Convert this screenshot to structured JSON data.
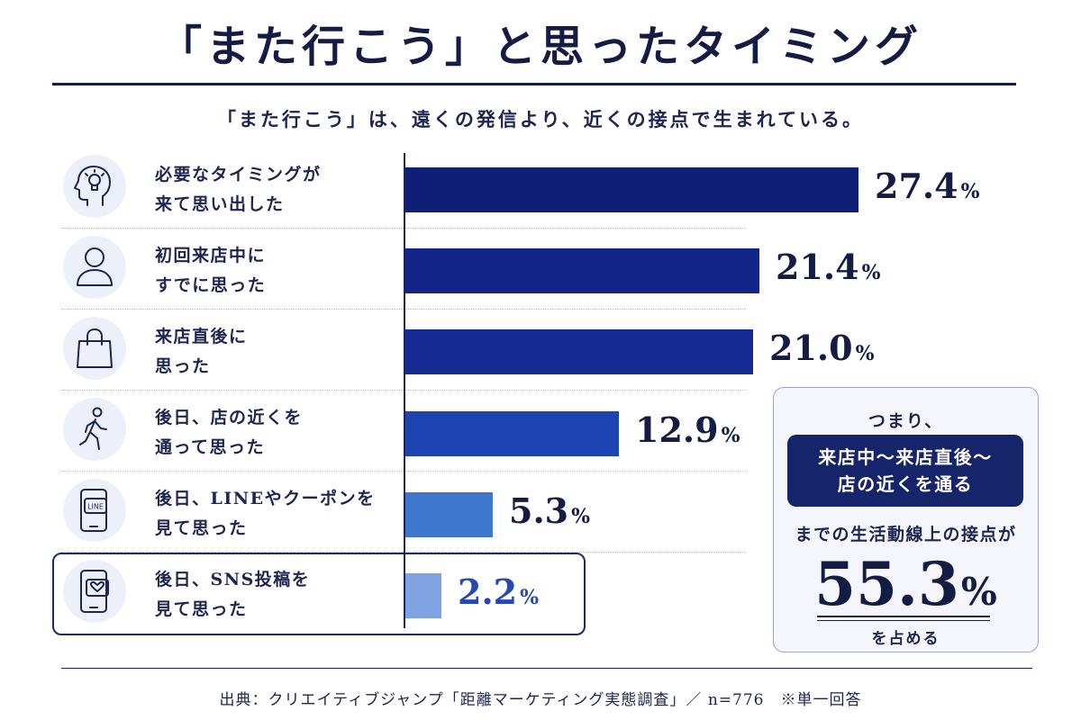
{
  "header": {
    "title": "「また行こう」と思ったタイミング",
    "subtitle": "「また行こう」は、遠くの発信より、近くの接点で生まれている。"
  },
  "colors": {
    "navy": "#141c44",
    "bar_colors": [
      "#0f1f78",
      "#14258a",
      "#162a94",
      "#1d45b2",
      "#3f77cc",
      "#7ea3e0"
    ],
    "highlight_value": "#2747b4"
  },
  "chart_data": {
    "type": "bar",
    "orientation": "horizontal",
    "categories": [
      "必要なタイミングが来て思い出した",
      "初回来店中にすでに思った",
      "来店直後に思った",
      "後日、店の近くを通って思った",
      "後日、LINEやクーポンを見て思った",
      "後日、SNS投稿を見て思った"
    ],
    "category_lines": [
      [
        "必要なタイミングが",
        "来て思い出した"
      ],
      [
        "初回来店中に",
        "すでに思った"
      ],
      [
        "来店直後に",
        "思った"
      ],
      [
        "後日、店の近くを",
        "通って思った"
      ],
      [
        "後日、LINEやクーポンを",
        "見て思った"
      ],
      [
        "後日、SNS投稿を",
        "見て思った"
      ]
    ],
    "icons": [
      "head-lightbulb-icon",
      "person-icon",
      "shopping-bag-icon",
      "walking-person-icon",
      "phone-line-icon",
      "phone-heart-icon"
    ],
    "values": [
      27.4,
      21.4,
      21.0,
      12.9,
      5.3,
      2.2
    ],
    "value_labels": [
      "27.4",
      "21.4",
      "21.0",
      "12.9",
      "5.3",
      "2.2"
    ],
    "unit": "%",
    "highlighted_index": 5,
    "xlim": [
      0,
      30
    ]
  },
  "summary": {
    "intro": "つまり、",
    "pill_lines": [
      "来店中〜来店直後〜",
      "店の近くを通る"
    ],
    "line3": "までの生活動線上の接点が",
    "value": "55.3",
    "unit": "%",
    "line4": "を占める"
  },
  "footer": {
    "source": "出典：クリエイティブジャンプ「距離マーケティング実態調査」／ n=776　※単一回答"
  }
}
